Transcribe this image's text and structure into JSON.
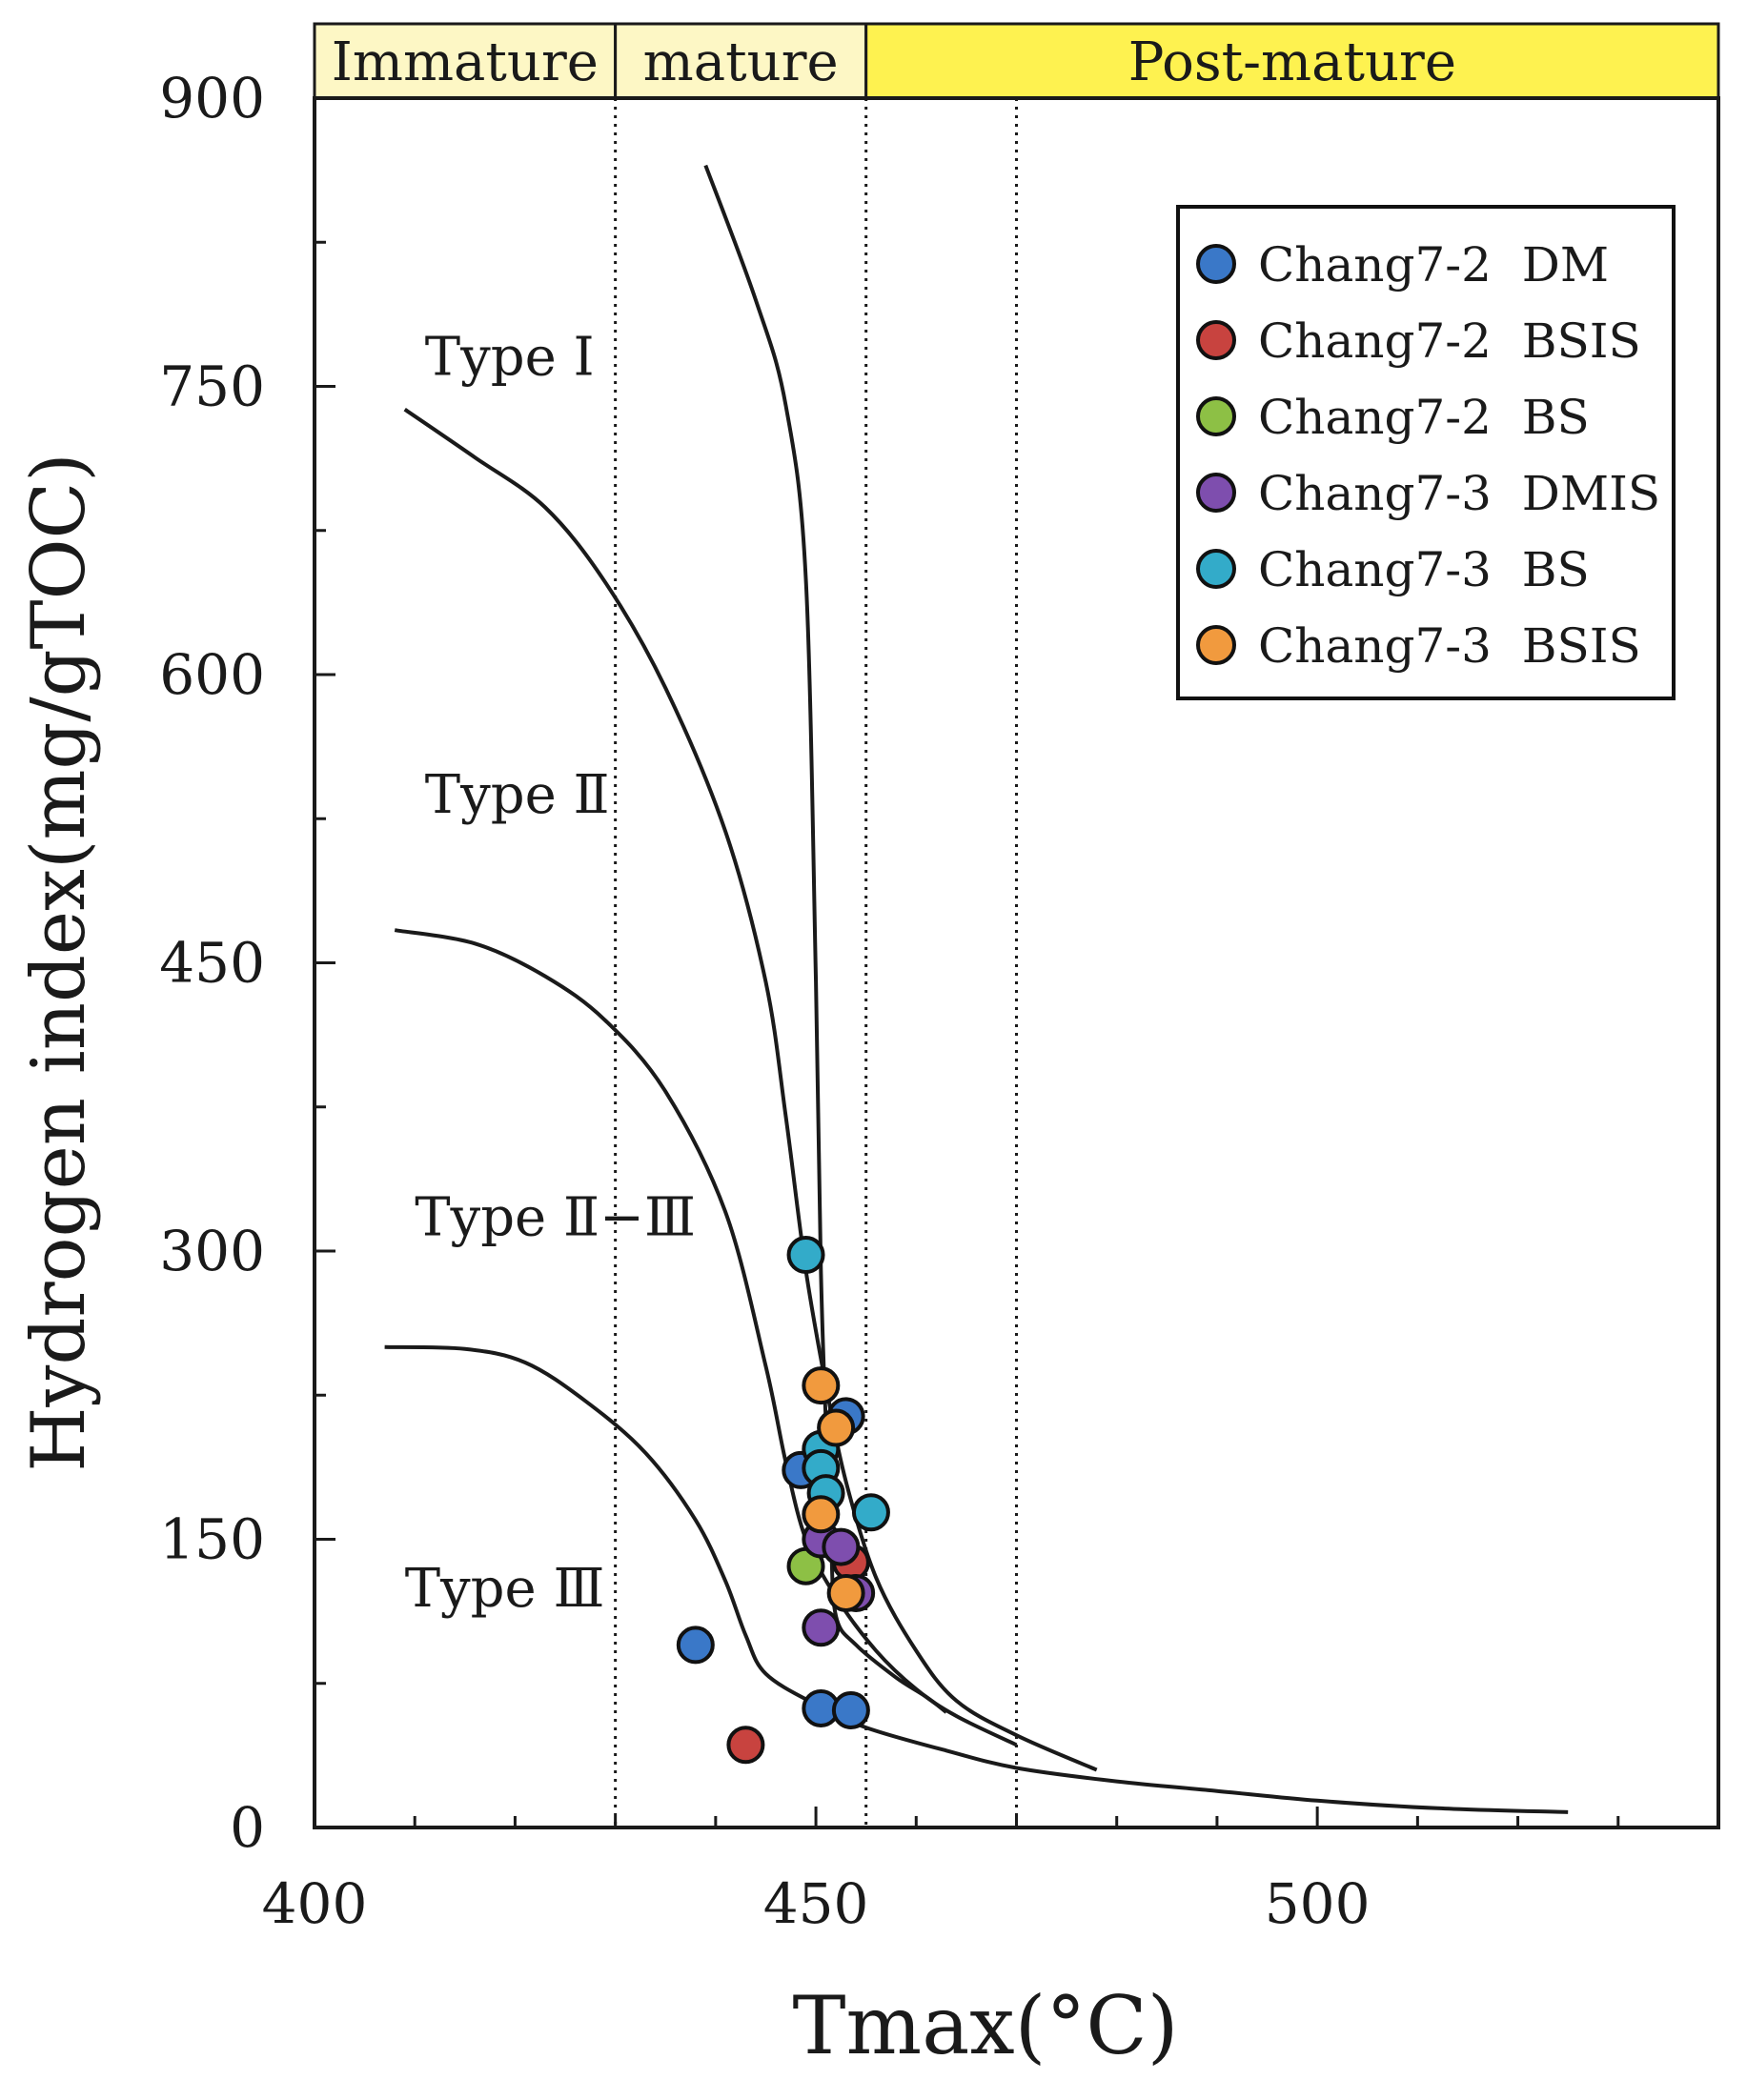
{
  "chart_data": {
    "type": "scatter",
    "xlabel": "Tmax(°C)",
    "ylabel": "Hydrogen index(mg/gTOC)",
    "xlim": [
      400,
      540
    ],
    "ylim": [
      0,
      900
    ],
    "x_ticks": [
      400,
      450,
      500
    ],
    "y_ticks": [
      0,
      150,
      300,
      450,
      600,
      750,
      900
    ],
    "x_minor_step": 10,
    "y_minor_step": 75,
    "grid": false,
    "legend_position": "top-right",
    "maturity_zones": [
      {
        "label": "Immature",
        "from": 400,
        "to": 430,
        "color": "#FDF7C5"
      },
      {
        "label": "mature",
        "from": 430,
        "to": 455,
        "color": "#FDF7C5"
      },
      {
        "label": "Post-mature",
        "from": 455,
        "to": 540,
        "color": "#FEF250"
      }
    ],
    "vertical_dotted_lines": [
      430,
      455,
      470
    ],
    "type_labels": [
      {
        "text": "Type  Ⅰ",
        "x": 411,
        "y": 765
      },
      {
        "text": "Type  Ⅱ",
        "x": 411,
        "y": 537
      },
      {
        "text": "Type  Ⅱ−Ⅲ",
        "x": 410,
        "y": 317
      },
      {
        "text": "Type Ⅲ",
        "x": 409,
        "y": 124
      }
    ],
    "curves": [
      {
        "name": "Type I",
        "points": [
          [
            439,
            865
          ],
          [
            444,
            795
          ],
          [
            447,
            740
          ],
          [
            449,
            650
          ],
          [
            450,
            440
          ],
          [
            450.5,
            290
          ],
          [
            451,
            210
          ],
          [
            451.5,
            150
          ],
          [
            452,
            110
          ],
          [
            454,
            95
          ],
          [
            458,
            78
          ],
          [
            461,
            68
          ],
          [
            463,
            60
          ]
        ]
      },
      {
        "name": "Type II",
        "points": [
          [
            409,
            738
          ],
          [
            416,
            713
          ],
          [
            423,
            687
          ],
          [
            429,
            648
          ],
          [
            435,
            593
          ],
          [
            441,
            518
          ],
          [
            445,
            440
          ],
          [
            447,
            370
          ],
          [
            449,
            290
          ],
          [
            451,
            230
          ],
          [
            453,
            180
          ],
          [
            456,
            130
          ],
          [
            460,
            92
          ],
          [
            464,
            66
          ],
          [
            470,
            48
          ],
          [
            478,
            30
          ]
        ]
      },
      {
        "name": "Type II-III",
        "points": [
          [
            408,
            467
          ],
          [
            416,
            460
          ],
          [
            423,
            443
          ],
          [
            429,
            420
          ],
          [
            435,
            383
          ],
          [
            441,
            320
          ],
          [
            445,
            240
          ],
          [
            447,
            190
          ],
          [
            449,
            150
          ],
          [
            452,
            120
          ],
          [
            456,
            92
          ],
          [
            460,
            72
          ],
          [
            464,
            58
          ],
          [
            470,
            43
          ]
        ]
      },
      {
        "name": "Type III",
        "points": [
          [
            407,
            250
          ],
          [
            415,
            249
          ],
          [
            421,
            242
          ],
          [
            427,
            222
          ],
          [
            433,
            195
          ],
          [
            438,
            160
          ],
          [
            441,
            128
          ],
          [
            443,
            100
          ],
          [
            445,
            80
          ],
          [
            450,
            64
          ],
          [
            455,
            52
          ],
          [
            463,
            40
          ],
          [
            470,
            31
          ],
          [
            480,
            24
          ],
          [
            490,
            19
          ],
          [
            500,
            14
          ],
          [
            512,
            10
          ],
          [
            525,
            8
          ]
        ]
      }
    ],
    "series": [
      {
        "name": "Chang7-2  DM",
        "color": "#3A78C8",
        "points": [
          [
            448.5,
            186
          ],
          [
            453,
            214
          ],
          [
            438,
            95
          ],
          [
            450.5,
            62
          ],
          [
            453.5,
            61
          ]
        ]
      },
      {
        "name": "Chang7-2  BSIS",
        "color": "#C8433F",
        "points": [
          [
            443,
            43
          ],
          [
            453.5,
            138
          ]
        ]
      },
      {
        "name": "Chang7-2  BS",
        "color": "#8DC045",
        "points": [
          [
            449,
            136
          ]
        ]
      },
      {
        "name": "Chang7-3  DMIS",
        "color": "#7E4EAE",
        "points": [
          [
            450.5,
            150
          ],
          [
            452.5,
            146
          ],
          [
            454,
            122
          ],
          [
            450.5,
            104
          ]
        ]
      },
      {
        "name": "Chang7-3  BS",
        "color": "#33ABC9",
        "points": [
          [
            449,
            298
          ],
          [
            450.5,
            197
          ],
          [
            450.5,
            187
          ],
          [
            451,
            174
          ],
          [
            455.5,
            164
          ]
        ]
      },
      {
        "name": "Chang7-3  BSIS",
        "color": "#F19A3E",
        "points": [
          [
            450.5,
            230
          ],
          [
            452,
            208
          ],
          [
            450.5,
            163
          ],
          [
            453,
            122
          ]
        ]
      }
    ]
  }
}
